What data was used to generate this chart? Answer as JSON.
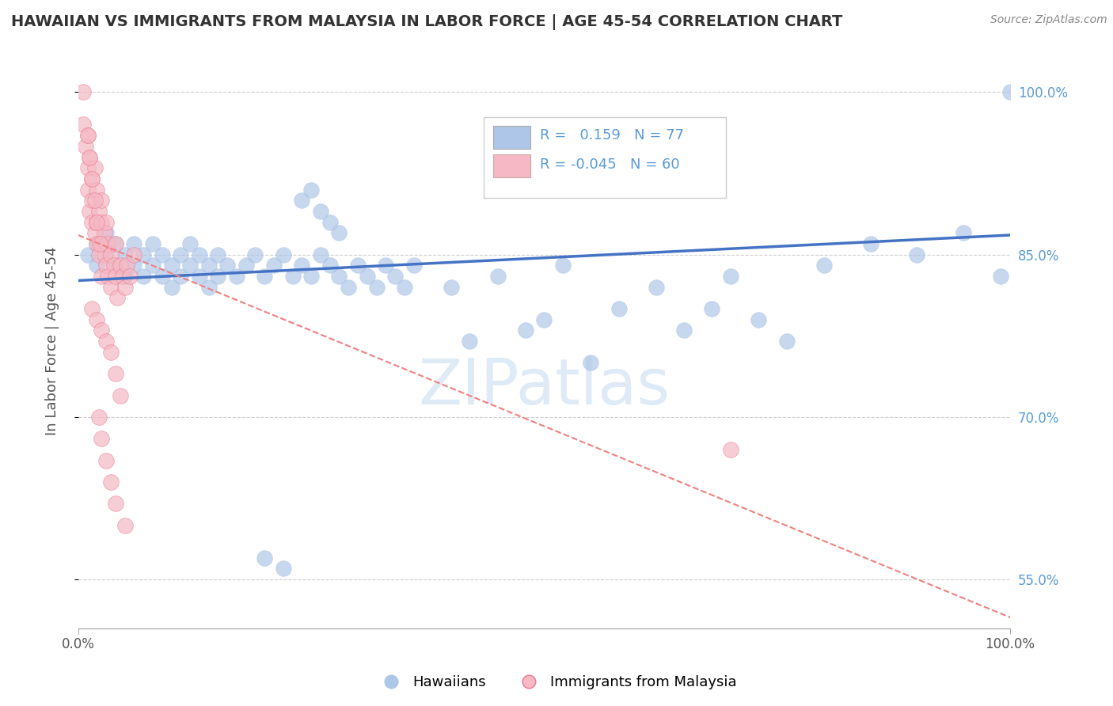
{
  "title": "HAWAIIAN VS IMMIGRANTS FROM MALAYSIA IN LABOR FORCE | AGE 45-54 CORRELATION CHART",
  "source": "Source: ZipAtlas.com",
  "ylabel": "In Labor Force | Age 45-54",
  "xlim": [
    0.0,
    1.0
  ],
  "ylim": [
    0.505,
    1.035
  ],
  "yticks": [
    0.55,
    0.7,
    0.85,
    1.0
  ],
  "ytick_labels": [
    "55.0%",
    "70.0%",
    "85.0%",
    "100.0%"
  ],
  "r_hawaiian": 0.159,
  "n_hawaiian": 77,
  "r_malaysia": -0.045,
  "n_malaysia": 60,
  "blue_color": "#aec6e8",
  "pink_color": "#f5b8c4",
  "blue_line_color": "#4472c4",
  "pink_line_color": "#f08080",
  "legend_blue_label": "Hawaiians",
  "legend_pink_label": "Immigrants from Malaysia",
  "watermark": "ZIPatlas",
  "blue_line_y0": 0.826,
  "blue_line_y1": 0.868,
  "pink_line_y0": 0.868,
  "pink_line_y1": 0.515
}
